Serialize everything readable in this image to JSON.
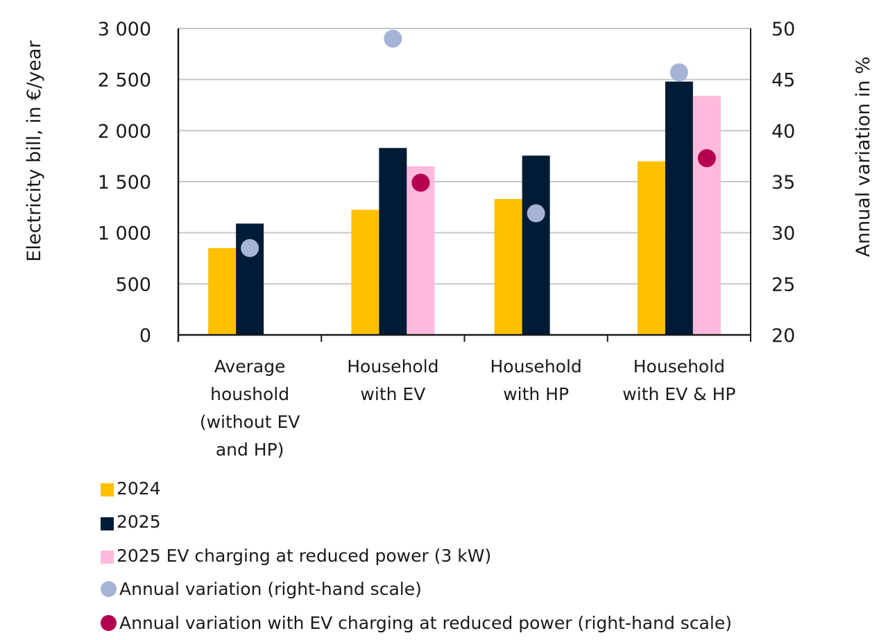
{
  "chart_data": {
    "type": "bar",
    "title": "",
    "xlabel": "",
    "ylabel": "Electricity bill, in €/year",
    "y2label": "Annual variation in %",
    "ylim": [
      0,
      3000
    ],
    "y2lim": [
      20,
      50
    ],
    "yticks": [
      "0",
      "500",
      "1 000",
      "1 500",
      "2 000",
      "2 500",
      "3 000"
    ],
    "y2ticks": [
      "20",
      "25",
      "30",
      "35",
      "40",
      "45",
      "50"
    ],
    "grid": true,
    "legend_position": "bottom-left",
    "categories": [
      [
        "Average",
        "houshold",
        "(without EV",
        "and HP)"
      ],
      [
        "Household",
        "with EV"
      ],
      [
        "Household",
        "with HP"
      ],
      [
        "Household",
        "with EV & HP"
      ]
    ],
    "series": [
      {
        "name": "2024",
        "kind": "bar",
        "axis": "left",
        "color": "#FFC000",
        "values": [
          850,
          1225,
          1330,
          1700
        ]
      },
      {
        "name": "2025",
        "kind": "bar",
        "axis": "left",
        "color": "#001B35",
        "values": [
          1090,
          1830,
          1755,
          2480
        ]
      },
      {
        "name": "2025 EV charging at reduced power (3 kW)",
        "kind": "bar",
        "axis": "left",
        "color": "#FFB9DC",
        "values": [
          null,
          1650,
          null,
          2340
        ]
      },
      {
        "name": "Annual variation (right-hand scale)",
        "kind": "dot",
        "axis": "right",
        "color": "#A5B4D6",
        "values": [
          28.5,
          49.0,
          31.9,
          45.7
        ]
      },
      {
        "name": "Annual variation with EV charging at reduced power (right-hand scale)",
        "kind": "dot",
        "axis": "right",
        "color": "#B5004F",
        "values": [
          null,
          34.9,
          null,
          37.3
        ]
      }
    ]
  }
}
